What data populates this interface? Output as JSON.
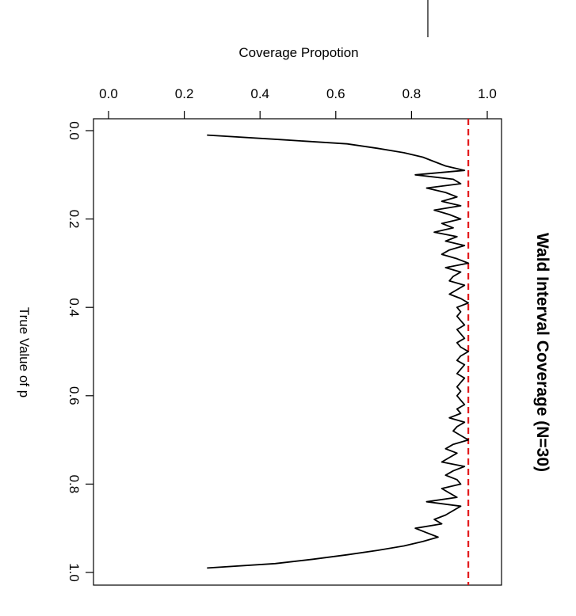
{
  "chart_data": {
    "type": "line",
    "title": "Wald Interval Coverage (N=30)",
    "xlabel": "True Value of p",
    "ylabel": "Coverage Propotion",
    "xlim": [
      0,
      1
    ],
    "ylim": [
      0,
      1
    ],
    "x_ticks": [
      "0.0",
      "0.2",
      "0.4",
      "0.6",
      "0.8",
      "1.0"
    ],
    "y_ticks": [
      "0.0",
      "0.2",
      "0.4",
      "0.6",
      "0.8",
      "1.0"
    ],
    "reference_line": {
      "value": 0.95,
      "color": "#e31a1c",
      "style": "dashed"
    },
    "series_color": "#000000",
    "grid": false,
    "orientation": "rotated-90-clockwise",
    "series": [
      {
        "x": [
          0.01,
          0.02,
          0.03,
          0.04,
          0.05,
          0.06,
          0.07,
          0.08,
          0.09,
          0.1,
          0.11,
          0.12,
          0.13,
          0.14,
          0.15,
          0.16,
          0.17,
          0.18,
          0.19,
          0.2,
          0.21,
          0.22,
          0.23,
          0.24,
          0.25,
          0.26,
          0.27,
          0.28,
          0.29,
          0.3,
          0.31,
          0.32,
          0.33,
          0.34,
          0.35,
          0.36,
          0.37,
          0.38,
          0.39,
          0.4,
          0.41,
          0.42,
          0.43,
          0.44,
          0.45,
          0.46,
          0.47,
          0.48,
          0.49,
          0.5,
          0.51,
          0.52,
          0.53,
          0.54,
          0.55,
          0.56,
          0.57,
          0.58,
          0.59,
          0.6,
          0.61,
          0.62,
          0.63,
          0.64,
          0.65,
          0.66,
          0.67,
          0.68,
          0.69,
          0.7,
          0.71,
          0.72,
          0.73,
          0.74,
          0.75,
          0.76,
          0.77,
          0.78,
          0.79,
          0.8,
          0.81,
          0.82,
          0.83,
          0.84,
          0.85,
          0.86,
          0.87,
          0.88,
          0.89,
          0.9,
          0.91,
          0.92,
          0.93,
          0.94,
          0.95,
          0.96,
          0.97,
          0.98,
          0.99
        ],
        "values": [
          0.26,
          0.45,
          0.63,
          0.71,
          0.78,
          0.83,
          0.86,
          0.89,
          0.94,
          0.81,
          0.91,
          0.93,
          0.84,
          0.89,
          0.92,
          0.88,
          0.93,
          0.86,
          0.9,
          0.93,
          0.88,
          0.91,
          0.86,
          0.92,
          0.89,
          0.94,
          0.9,
          0.88,
          0.92,
          0.95,
          0.89,
          0.93,
          0.91,
          0.9,
          0.94,
          0.92,
          0.9,
          0.93,
          0.95,
          0.92,
          0.93,
          0.92,
          0.93,
          0.94,
          0.92,
          0.93,
          0.94,
          0.92,
          0.93,
          0.95,
          0.93,
          0.92,
          0.94,
          0.93,
          0.92,
          0.94,
          0.93,
          0.92,
          0.93,
          0.92,
          0.93,
          0.94,
          0.92,
          0.93,
          0.9,
          0.94,
          0.92,
          0.91,
          0.93,
          0.95,
          0.91,
          0.89,
          0.92,
          0.9,
          0.88,
          0.94,
          0.91,
          0.89,
          0.92,
          0.93,
          0.88,
          0.9,
          0.92,
          0.84,
          0.93,
          0.91,
          0.89,
          0.86,
          0.88,
          0.81,
          0.84,
          0.87,
          0.83,
          0.78,
          0.71,
          0.63,
          0.54,
          0.44,
          0.26
        ]
      }
    ]
  }
}
